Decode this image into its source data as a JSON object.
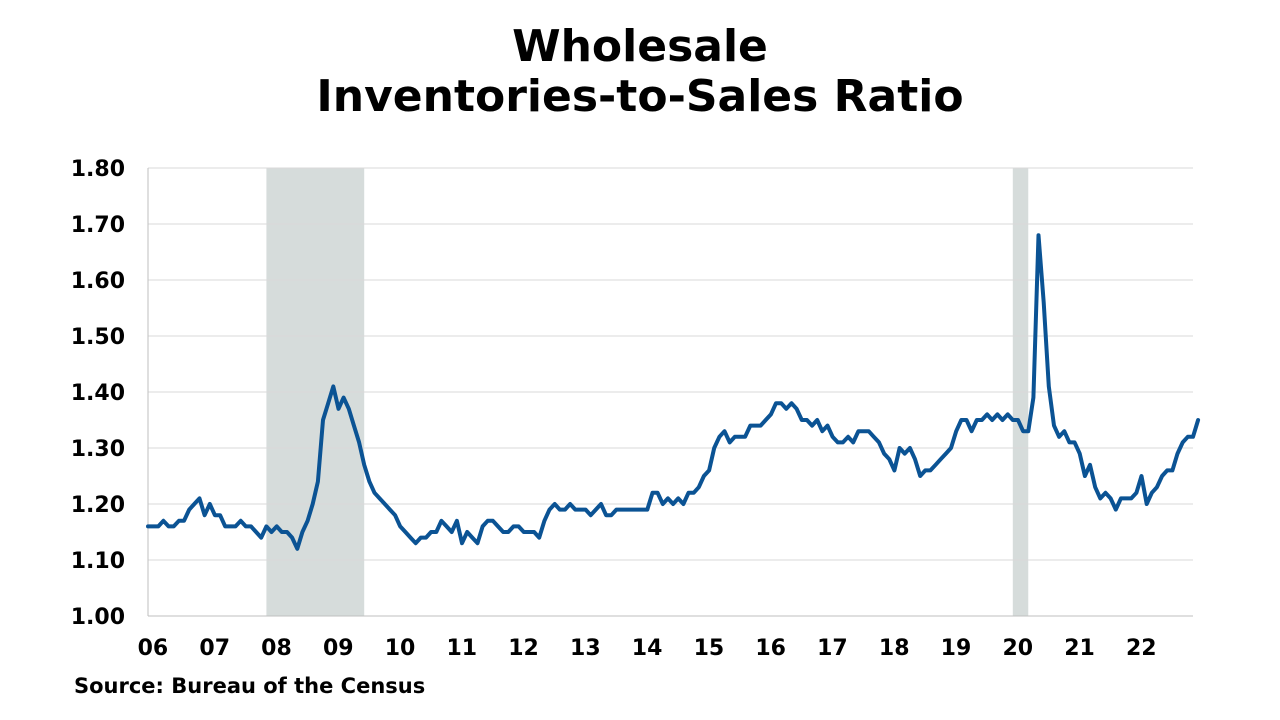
{
  "chart_data": {
    "type": "line",
    "title_lines": [
      "Wholesale",
      "Inventories-to-Sales Ratio"
    ],
    "source": "Source: Bureau of the Census",
    "ylim": [
      1.0,
      1.8
    ],
    "yticks": [
      "1.00",
      "1.10",
      "1.20",
      "1.30",
      "1.40",
      "1.50",
      "1.60",
      "1.70",
      "1.80"
    ],
    "xlim": [
      2006.0,
      2022.917
    ],
    "xtick_labels": [
      "06",
      "07",
      "08",
      "09",
      "10",
      "11",
      "12",
      "13",
      "14",
      "15",
      "16",
      "17",
      "18",
      "19",
      "20",
      "21",
      "22"
    ],
    "grid": true,
    "line_color": "#0b5394",
    "shade_color": "#d6dcdb",
    "recessions": [
      [
        2007.917,
        2009.5
      ],
      [
        2020.0,
        2020.25
      ]
    ],
    "series": [
      {
        "start": "2006-01",
        "frequency": "monthly",
        "values": [
          1.16,
          1.16,
          1.16,
          1.17,
          1.16,
          1.16,
          1.17,
          1.17,
          1.19,
          1.2,
          1.21,
          1.18,
          1.2,
          1.18,
          1.18,
          1.16,
          1.16,
          1.16,
          1.17,
          1.16,
          1.16,
          1.15,
          1.14,
          1.16,
          1.15,
          1.16,
          1.15,
          1.15,
          1.14,
          1.12,
          1.15,
          1.17,
          1.2,
          1.24,
          1.35,
          1.38,
          1.41,
          1.37,
          1.39,
          1.37,
          1.34,
          1.31,
          1.27,
          1.24,
          1.22,
          1.21,
          1.2,
          1.19,
          1.18,
          1.16,
          1.15,
          1.14,
          1.13,
          1.14,
          1.14,
          1.15,
          1.15,
          1.17,
          1.16,
          1.15,
          1.17,
          1.13,
          1.15,
          1.14,
          1.13,
          1.16,
          1.17,
          1.17,
          1.16,
          1.15,
          1.15,
          1.16,
          1.16,
          1.15,
          1.15,
          1.15,
          1.14,
          1.17,
          1.19,
          1.2,
          1.19,
          1.19,
          1.2,
          1.19,
          1.19,
          1.19,
          1.18,
          1.19,
          1.2,
          1.18,
          1.18,
          1.19,
          1.19,
          1.19,
          1.19,
          1.19,
          1.19,
          1.19,
          1.22,
          1.22,
          1.2,
          1.21,
          1.2,
          1.21,
          1.2,
          1.22,
          1.22,
          1.23,
          1.25,
          1.26,
          1.3,
          1.32,
          1.33,
          1.31,
          1.32,
          1.32,
          1.32,
          1.34,
          1.34,
          1.34,
          1.35,
          1.36,
          1.38,
          1.38,
          1.37,
          1.38,
          1.37,
          1.35,
          1.35,
          1.34,
          1.35,
          1.33,
          1.34,
          1.32,
          1.31,
          1.31,
          1.32,
          1.31,
          1.33,
          1.33,
          1.33,
          1.32,
          1.31,
          1.29,
          1.28,
          1.26,
          1.3,
          1.29,
          1.3,
          1.28,
          1.25,
          1.26,
          1.26,
          1.27,
          1.28,
          1.29,
          1.3,
          1.33,
          1.35,
          1.35,
          1.33,
          1.35,
          1.35,
          1.36,
          1.35,
          1.36,
          1.35,
          1.36,
          1.35,
          1.35,
          1.33,
          1.33,
          1.39,
          1.68,
          1.56,
          1.41,
          1.34,
          1.32,
          1.33,
          1.31,
          1.31,
          1.29,
          1.25,
          1.27,
          1.23,
          1.21,
          1.22,
          1.21,
          1.19,
          1.21,
          1.21,
          1.21,
          1.22,
          1.25,
          1.2,
          1.22,
          1.23,
          1.25,
          1.26,
          1.26,
          1.29,
          1.31,
          1.32,
          1.32,
          1.35
        ]
      }
    ]
  }
}
